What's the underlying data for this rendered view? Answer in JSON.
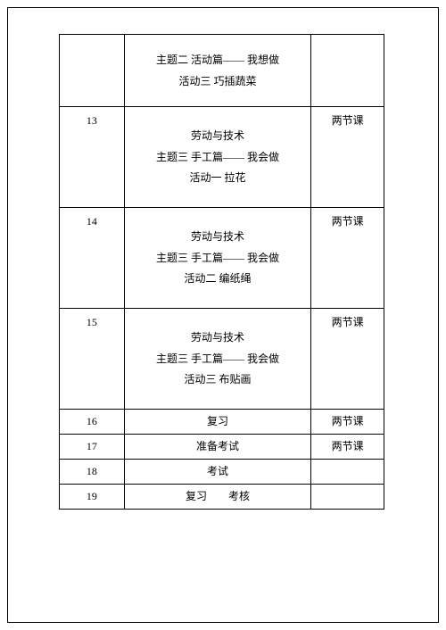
{
  "rows": [
    {
      "num": "",
      "lines": [
        "主题二  活动篇——  我想做",
        "活动三  巧插蔬菜"
      ],
      "note": ""
    },
    {
      "num": "13",
      "lines": [
        "劳动与技术",
        "主题三  手工篇——  我会做",
        "活动一  拉花"
      ],
      "note": "两节课"
    },
    {
      "num": "14",
      "lines": [
        "劳动与技术",
        "主题三  手工篇——  我会做",
        "活动二  编纸绳"
      ],
      "note": "两节课"
    },
    {
      "num": "15",
      "lines": [
        "劳动与技术",
        "主题三  手工篇——  我会做",
        "活动三  布贴画"
      ],
      "note": "两节课"
    },
    {
      "num": "16",
      "lines": [
        "复习"
      ],
      "note": "两节课"
    },
    {
      "num": "17",
      "lines": [
        "准备考试"
      ],
      "note": "两节课"
    },
    {
      "num": "18",
      "lines": [
        "考试"
      ],
      "note": ""
    },
    {
      "num": "19",
      "lines": [
        "复习　　考核"
      ],
      "note": ""
    }
  ]
}
